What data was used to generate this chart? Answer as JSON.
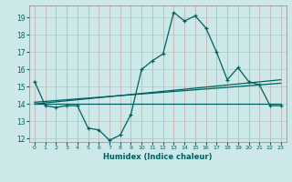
{
  "title": "",
  "xlabel": "Humidex (Indice chaleur)",
  "background_color": "#cce8e8",
  "grid_color": "#b0c8c8",
  "line_color": "#006060",
  "xlim": [
    -0.5,
    23.5
  ],
  "ylim": [
    11.8,
    19.7
  ],
  "yticks": [
    12,
    13,
    14,
    15,
    16,
    17,
    18,
    19
  ],
  "xticks": [
    0,
    1,
    2,
    3,
    4,
    5,
    6,
    7,
    8,
    9,
    10,
    11,
    12,
    13,
    14,
    15,
    16,
    17,
    18,
    19,
    20,
    21,
    22,
    23
  ],
  "xtick_labels": [
    "0",
    "1",
    "2",
    "3",
    "4",
    "5",
    "6",
    "7",
    "8",
    "9",
    "10",
    "11",
    "12",
    "13",
    "14",
    "15",
    "16",
    "17",
    "18",
    "19",
    "20",
    "21",
    "22",
    "23"
  ],
  "main_line": [
    15.3,
    13.9,
    13.8,
    13.9,
    13.9,
    12.6,
    12.5,
    11.9,
    12.2,
    13.4,
    16.0,
    16.5,
    16.9,
    19.3,
    18.8,
    19.1,
    18.4,
    17.0,
    15.4,
    16.1,
    15.3,
    15.1,
    13.9,
    13.9
  ],
  "flat_line": [
    [
      0,
      14.0
    ],
    [
      23,
      14.0
    ]
  ],
  "slope_line1": [
    [
      0,
      14.0
    ],
    [
      23,
      15.4
    ]
  ],
  "slope_line2": [
    [
      0,
      14.1
    ],
    [
      23,
      15.2
    ]
  ]
}
